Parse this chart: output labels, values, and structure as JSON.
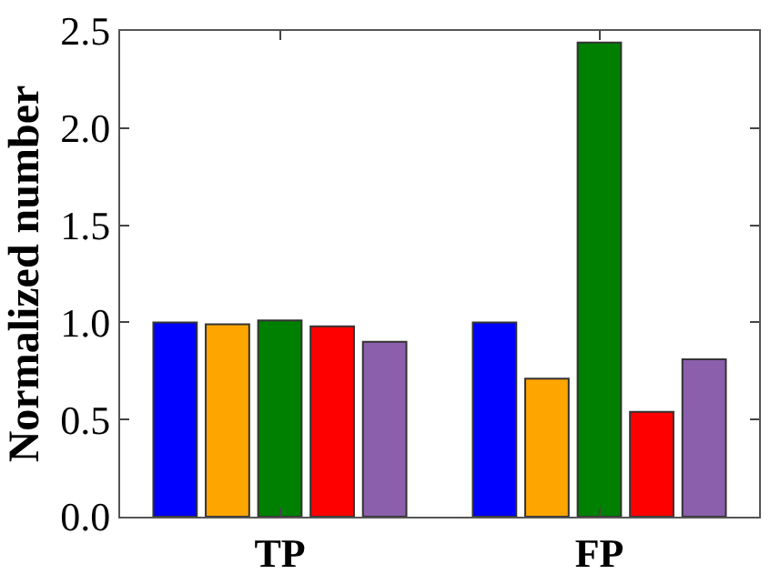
{
  "chart_data": {
    "type": "bar",
    "ylabel": "Normalized number",
    "categories": [
      "TP",
      "FP"
    ],
    "series": [
      {
        "color": "#0000ff",
        "values": [
          1.0,
          1.0
        ]
      },
      {
        "color": "#ffa500",
        "values": [
          0.99,
          0.71
        ]
      },
      {
        "color": "#008000",
        "values": [
          1.01,
          2.44
        ]
      },
      {
        "color": "#ff0000",
        "values": [
          0.98,
          0.54
        ]
      },
      {
        "color": "#8c5fad",
        "values": [
          0.9,
          0.81
        ]
      }
    ],
    "ylim": [
      0,
      2.5
    ],
    "yticks": [
      {
        "value": 0,
        "label": "0.0"
      },
      {
        "value": 0.5,
        "label": "0.5"
      },
      {
        "value": 1,
        "label": "1.0"
      },
      {
        "value": 1.5,
        "label": "1.5"
      },
      {
        "value": 2,
        "label": "2.0"
      },
      {
        "value": 2.5,
        "label": "2.5"
      }
    ]
  }
}
